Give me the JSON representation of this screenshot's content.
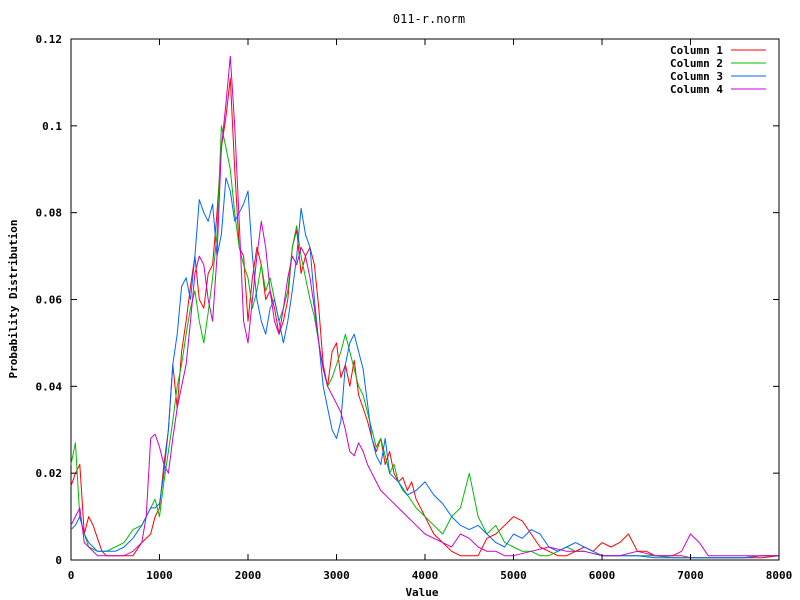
{
  "chart_data": {
    "type": "line",
    "title": "011-r.norm",
    "xlabel": "Value",
    "ylabel": "Probability Distribution",
    "xlim": [
      0,
      8000
    ],
    "ylim": [
      0,
      0.12
    ],
    "xticks": [
      0,
      1000,
      2000,
      3000,
      4000,
      5000,
      6000,
      7000,
      8000
    ],
    "xtick_labels": [
      "0",
      "1000",
      "2000",
      "3000",
      "4000",
      "5000",
      "6000",
      "7000",
      "8000"
    ],
    "yticks": [
      0,
      0.02,
      0.04,
      0.06,
      0.08,
      0.1,
      0.12
    ],
    "ytick_labels": [
      "0",
      "0.02",
      "0.04",
      "0.06",
      "0.08",
      "0.1",
      "0.12"
    ],
    "grid": false,
    "legend_position": "top-right",
    "series": [
      {
        "name": "Column 1",
        "color": "#ff0000",
        "x": [
          0,
          50,
          100,
          150,
          200,
          250,
          300,
          350,
          400,
          500,
          600,
          700,
          800,
          900,
          950,
          1000,
          1050,
          1100,
          1150,
          1200,
          1250,
          1300,
          1350,
          1400,
          1450,
          1500,
          1550,
          1600,
          1650,
          1700,
          1750,
          1800,
          1850,
          1900,
          1950,
          2000,
          2050,
          2100,
          2150,
          2200,
          2250,
          2300,
          2350,
          2400,
          2450,
          2500,
          2550,
          2600,
          2650,
          2700,
          2750,
          2800,
          2850,
          2900,
          2950,
          3000,
          3050,
          3100,
          3150,
          3200,
          3250,
          3300,
          3350,
          3400,
          3450,
          3500,
          3550,
          3600,
          3650,
          3700,
          3750,
          3800,
          3850,
          3900,
          3950,
          4000,
          4100,
          4200,
          4300,
          4400,
          4500,
          4600,
          4700,
          4800,
          4900,
          5000,
          5100,
          5200,
          5300,
          5400,
          5500,
          5600,
          5700,
          5800,
          5900,
          6000,
          6100,
          6200,
          6300,
          6400,
          6500,
          6600,
          6700,
          6800,
          6900,
          7000,
          7200,
          7400,
          7600,
          7800,
          8000
        ],
        "values": [
          0.017,
          0.02,
          0.022,
          0.006,
          0.01,
          0.008,
          0.005,
          0.002,
          0.001,
          0.001,
          0.001,
          0.001,
          0.004,
          0.006,
          0.01,
          0.012,
          0.022,
          0.03,
          0.045,
          0.035,
          0.048,
          0.055,
          0.063,
          0.07,
          0.06,
          0.058,
          0.066,
          0.068,
          0.08,
          0.095,
          0.102,
          0.111,
          0.09,
          0.072,
          0.07,
          0.055,
          0.065,
          0.072,
          0.068,
          0.06,
          0.062,
          0.058,
          0.052,
          0.055,
          0.06,
          0.072,
          0.076,
          0.066,
          0.07,
          0.072,
          0.068,
          0.058,
          0.045,
          0.04,
          0.048,
          0.05,
          0.042,
          0.045,
          0.04,
          0.046,
          0.038,
          0.035,
          0.032,
          0.028,
          0.025,
          0.028,
          0.022,
          0.025,
          0.02,
          0.018,
          0.019,
          0.016,
          0.018,
          0.014,
          0.012,
          0.01,
          0.006,
          0.004,
          0.002,
          0.001,
          0.001,
          0.001,
          0.005,
          0.006,
          0.008,
          0.01,
          0.009,
          0.006,
          0.003,
          0.002,
          0.001,
          0.001,
          0.002,
          0.003,
          0.002,
          0.004,
          0.003,
          0.004,
          0.006,
          0.002,
          0.002,
          0.001,
          0.001,
          0.001,
          0.001,
          0.0005,
          0.0005,
          0.0005,
          0.0005,
          0.0005,
          0.001
        ]
      },
      {
        "name": "Column 2",
        "color": "#00bb00",
        "x": [
          0,
          50,
          100,
          150,
          200,
          300,
          400,
          500,
          600,
          700,
          800,
          900,
          950,
          1000,
          1050,
          1100,
          1150,
          1200,
          1250,
          1300,
          1350,
          1400,
          1450,
          1500,
          1550,
          1600,
          1650,
          1700,
          1750,
          1800,
          1850,
          1900,
          1950,
          2000,
          2050,
          2100,
          2150,
          2200,
          2250,
          2300,
          2350,
          2400,
          2450,
          2500,
          2550,
          2600,
          2650,
          2700,
          2750,
          2800,
          2850,
          2900,
          2950,
          3000,
          3050,
          3100,
          3150,
          3200,
          3250,
          3300,
          3350,
          3400,
          3450,
          3500,
          3550,
          3600,
          3650,
          3700,
          3750,
          3800,
          3900,
          4000,
          4100,
          4200,
          4300,
          4400,
          4500,
          4600,
          4700,
          4800,
          4900,
          5000,
          5100,
          5200,
          5300,
          5400,
          5500,
          5600,
          5700,
          5800,
          6000,
          6200,
          6400,
          6600,
          6800,
          7000,
          7200,
          7400,
          7600,
          7800,
          8000
        ],
        "values": [
          0.022,
          0.027,
          0.01,
          0.006,
          0.003,
          0.002,
          0.002,
          0.003,
          0.004,
          0.007,
          0.008,
          0.012,
          0.014,
          0.01,
          0.018,
          0.025,
          0.032,
          0.04,
          0.045,
          0.052,
          0.058,
          0.062,
          0.055,
          0.05,
          0.057,
          0.065,
          0.075,
          0.1,
          0.095,
          0.09,
          0.08,
          0.072,
          0.068,
          0.065,
          0.058,
          0.062,
          0.068,
          0.062,
          0.065,
          0.06,
          0.055,
          0.058,
          0.062,
          0.072,
          0.077,
          0.07,
          0.065,
          0.06,
          0.056,
          0.05,
          0.044,
          0.04,
          0.042,
          0.045,
          0.048,
          0.052,
          0.048,
          0.044,
          0.04,
          0.038,
          0.034,
          0.03,
          0.026,
          0.028,
          0.024,
          0.02,
          0.022,
          0.018,
          0.016,
          0.015,
          0.012,
          0.01,
          0.008,
          0.006,
          0.01,
          0.012,
          0.02,
          0.01,
          0.006,
          0.008,
          0.004,
          0.003,
          0.002,
          0.002,
          0.001,
          0.001,
          0.002,
          0.003,
          0.002,
          0.002,
          0.001,
          0.001,
          0.001,
          0.001,
          0.0005,
          0.0005,
          0.0005,
          0.0005,
          0.0005,
          0.001,
          0.001
        ]
      },
      {
        "name": "Column 3",
        "color": "#0066ff",
        "x": [
          0,
          50,
          100,
          150,
          200,
          300,
          400,
          500,
          600,
          700,
          800,
          900,
          950,
          1000,
          1050,
          1100,
          1150,
          1200,
          1250,
          1300,
          1350,
          1400,
          1450,
          1500,
          1550,
          1600,
          1650,
          1700,
          1750,
          1800,
          1850,
          1900,
          1950,
          2000,
          2050,
          2100,
          2150,
          2200,
          2250,
          2300,
          2350,
          2400,
          2450,
          2500,
          2550,
          2600,
          2650,
          2700,
          2750,
          2800,
          2850,
          2900,
          2950,
          3000,
          3050,
          3100,
          3150,
          3200,
          3250,
          3300,
          3350,
          3400,
          3450,
          3500,
          3550,
          3600,
          3700,
          3800,
          3900,
          4000,
          4100,
          4200,
          4300,
          4400,
          4500,
          4600,
          4700,
          4800,
          4900,
          5000,
          5100,
          5200,
          5300,
          5400,
          5500,
          5600,
          5700,
          5800,
          6000,
          6200,
          6400,
          6600,
          6800,
          7000,
          7200,
          7400,
          7600,
          7800,
          8000
        ],
        "values": [
          0.007,
          0.008,
          0.01,
          0.006,
          0.004,
          0.002,
          0.002,
          0.002,
          0.003,
          0.005,
          0.008,
          0.012,
          0.012,
          0.013,
          0.02,
          0.03,
          0.045,
          0.052,
          0.063,
          0.065,
          0.06,
          0.07,
          0.083,
          0.08,
          0.078,
          0.082,
          0.07,
          0.075,
          0.088,
          0.085,
          0.078,
          0.08,
          0.082,
          0.085,
          0.07,
          0.06,
          0.055,
          0.052,
          0.058,
          0.06,
          0.055,
          0.05,
          0.055,
          0.062,
          0.07,
          0.081,
          0.075,
          0.072,
          0.06,
          0.05,
          0.04,
          0.035,
          0.03,
          0.028,
          0.032,
          0.045,
          0.05,
          0.052,
          0.048,
          0.044,
          0.036,
          0.028,
          0.024,
          0.022,
          0.028,
          0.02,
          0.018,
          0.015,
          0.016,
          0.018,
          0.015,
          0.013,
          0.01,
          0.008,
          0.007,
          0.008,
          0.006,
          0.004,
          0.003,
          0.006,
          0.005,
          0.007,
          0.006,
          0.003,
          0.002,
          0.003,
          0.004,
          0.003,
          0.001,
          0.001,
          0.001,
          0.0005,
          0.0005,
          0.0005,
          0.0005,
          0.0005,
          0.0005,
          0.001,
          0.001
        ]
      },
      {
        "name": "Column 4",
        "color": "#cc00cc",
        "x": [
          0,
          50,
          100,
          150,
          200,
          300,
          400,
          500,
          600,
          700,
          800,
          850,
          900,
          950,
          1000,
          1050,
          1100,
          1150,
          1200,
          1250,
          1300,
          1350,
          1400,
          1450,
          1500,
          1550,
          1600,
          1650,
          1700,
          1750,
          1800,
          1850,
          1900,
          1950,
          2000,
          2050,
          2100,
          2150,
          2200,
          2250,
          2300,
          2350,
          2400,
          2450,
          2500,
          2550,
          2600,
          2650,
          2700,
          2750,
          2800,
          2850,
          2900,
          2950,
          3000,
          3050,
          3100,
          3150,
          3200,
          3250,
          3300,
          3350,
          3400,
          3450,
          3500,
          3600,
          3700,
          3800,
          3900,
          4000,
          4100,
          4200,
          4300,
          4400,
          4500,
          4600,
          4700,
          4800,
          4900,
          5000,
          5200,
          5400,
          5600,
          5800,
          6000,
          6200,
          6400,
          6600,
          6800,
          6900,
          7000,
          7100,
          7200,
          7400,
          7600,
          7800,
          8000
        ],
        "values": [
          0.008,
          0.01,
          0.012,
          0.004,
          0.003,
          0.001,
          0.001,
          0.001,
          0.001,
          0.002,
          0.004,
          0.01,
          0.028,
          0.029,
          0.026,
          0.022,
          0.02,
          0.028,
          0.035,
          0.04,
          0.045,
          0.055,
          0.066,
          0.07,
          0.068,
          0.06,
          0.055,
          0.07,
          0.095,
          0.105,
          0.116,
          0.1,
          0.078,
          0.055,
          0.05,
          0.06,
          0.07,
          0.078,
          0.072,
          0.062,
          0.055,
          0.052,
          0.058,
          0.065,
          0.07,
          0.068,
          0.072,
          0.07,
          0.065,
          0.058,
          0.05,
          0.044,
          0.04,
          0.038,
          0.036,
          0.034,
          0.03,
          0.025,
          0.024,
          0.027,
          0.025,
          0.022,
          0.02,
          0.018,
          0.016,
          0.014,
          0.012,
          0.01,
          0.008,
          0.006,
          0.005,
          0.004,
          0.003,
          0.006,
          0.005,
          0.003,
          0.002,
          0.002,
          0.001,
          0.001,
          0.002,
          0.003,
          0.002,
          0.002,
          0.001,
          0.001,
          0.002,
          0.001,
          0.001,
          0.002,
          0.006,
          0.004,
          0.001,
          0.001,
          0.001,
          0.001,
          0.001
        ]
      }
    ]
  }
}
